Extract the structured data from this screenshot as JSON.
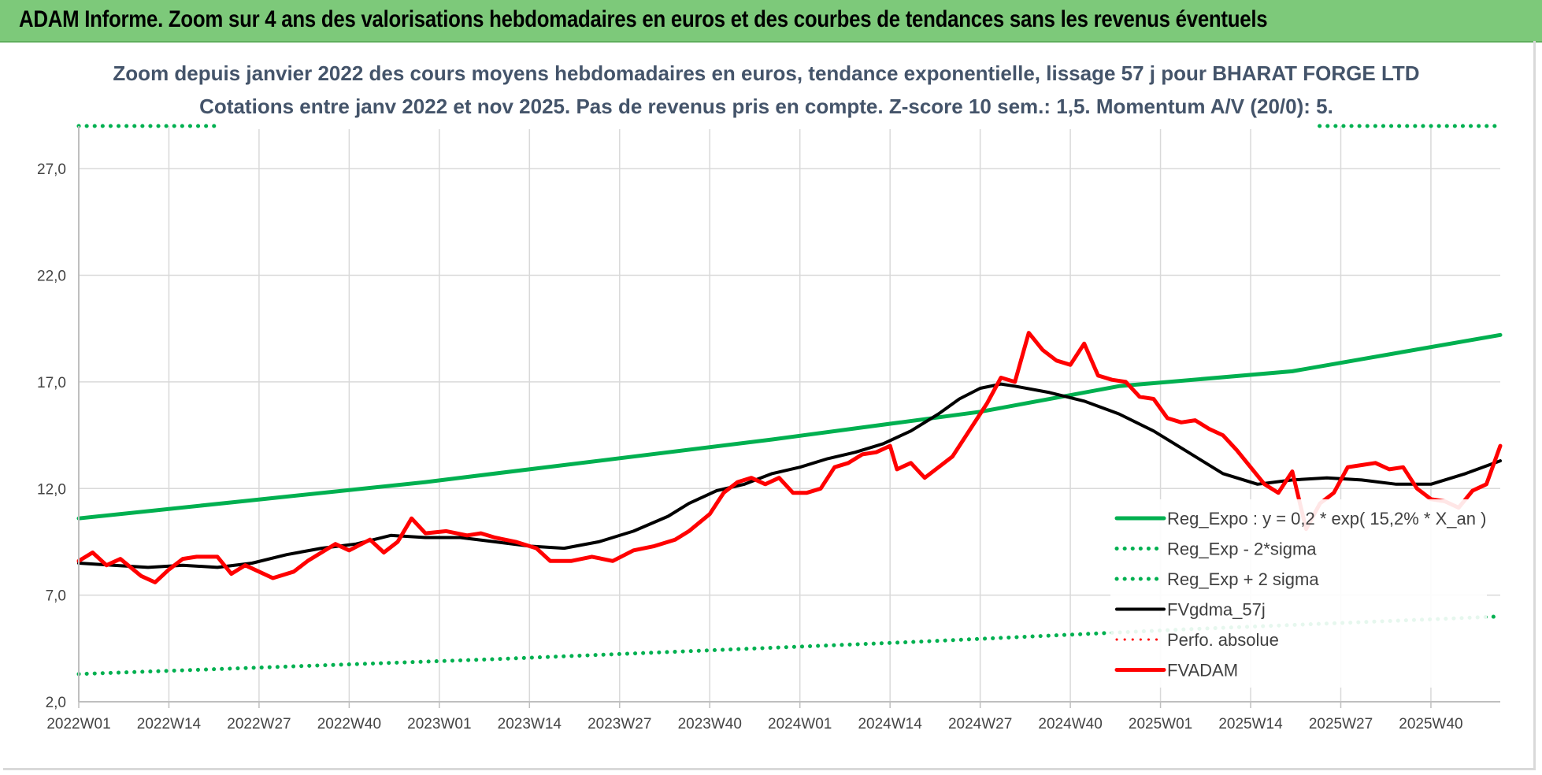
{
  "banner": {
    "title": "ADAM Informe. Zoom sur 4 ans des valorisations hebdomadaires en euros et des courbes de tendances sans les revenus éventuels"
  },
  "colors": {
    "banner_bg": "#7dc97a",
    "green": "#00b050",
    "red": "#ff0000",
    "black": "#000000",
    "grid": "#d9d9d9",
    "title": "#44546a"
  },
  "chart_data": {
    "type": "line",
    "title_lines": [
      "Zoom depuis janvier 2022 des cours moyens hebdomadaires en euros, tendance exponentielle, lissage 57 j pour BHARAT FORGE LTD",
      "Cotations entre janv 2022 et nov 2025. Pas de revenus pris en compte. Z-score 10 sem.: 1,5. Momentum A/V (20/0): 5."
    ],
    "x_tick_labels": [
      "2022W01",
      "2022W14",
      "2022W27",
      "2022W40",
      "2023W01",
      "2023W14",
      "2023W27",
      "2023W40",
      "2024W01",
      "2024W14",
      "2024W27",
      "2024W40",
      "2025W01",
      "2025W14",
      "2025W27",
      "2025W40"
    ],
    "x_tick_index": [
      0,
      13,
      26,
      39,
      52,
      65,
      78,
      91,
      104,
      117,
      130,
      143,
      156,
      169,
      182,
      195
    ],
    "n_weeks": 206,
    "ylim": [
      2.0,
      29.0
    ],
    "y_ticks": [
      2.0,
      7.0,
      12.0,
      17.0,
      22.0,
      27.0
    ],
    "y_tick_labels": [
      "2,0",
      "7,0",
      "12,0",
      "17,0",
      "22,0",
      "27,0"
    ],
    "series": [
      {
        "name": "Reg_Expo : y = 0,2 * exp( 15,2% *  X_an )",
        "color": "#00b050",
        "style": "solid",
        "width": 5,
        "points": [
          [
            0,
            10.6
          ],
          [
            50,
            12.3
          ],
          [
            100,
            14.3
          ],
          [
            130,
            15.6
          ],
          [
            150,
            16.8
          ],
          [
            175,
            17.5
          ],
          [
            205,
            19.2
          ]
        ]
      },
      {
        "name": "Reg_Exp - 2*sigma",
        "color": "#00b050",
        "style": "dotted",
        "width": 5,
        "points": [
          [
            0,
            3.3
          ],
          [
            60,
            4.0
          ],
          [
            120,
            4.8
          ],
          [
            160,
            5.4
          ],
          [
            205,
            6.0
          ]
        ]
      },
      {
        "name": "Reg_Exp + 2 sigma",
        "color": "#00b050",
        "style": "dotted",
        "width": 5,
        "points": [
          [
            0,
            29.0
          ],
          [
            205,
            29.0
          ]
        ]
      },
      {
        "name": "FVgdma_57j",
        "color": "#000000",
        "style": "solid",
        "width": 4,
        "points": [
          [
            0,
            8.5
          ],
          [
            5,
            8.4
          ],
          [
            10,
            8.3
          ],
          [
            15,
            8.4
          ],
          [
            20,
            8.3
          ],
          [
            25,
            8.5
          ],
          [
            30,
            8.9
          ],
          [
            35,
            9.2
          ],
          [
            40,
            9.4
          ],
          [
            45,
            9.8
          ],
          [
            50,
            9.7
          ],
          [
            55,
            9.7
          ],
          [
            60,
            9.5
          ],
          [
            65,
            9.3
          ],
          [
            70,
            9.2
          ],
          [
            75,
            9.5
          ],
          [
            80,
            10.0
          ],
          [
            85,
            10.7
          ],
          [
            88,
            11.3
          ],
          [
            92,
            11.9
          ],
          [
            96,
            12.2
          ],
          [
            100,
            12.7
          ],
          [
            104,
            13.0
          ],
          [
            108,
            13.4
          ],
          [
            112,
            13.7
          ],
          [
            116,
            14.1
          ],
          [
            120,
            14.7
          ],
          [
            124,
            15.5
          ],
          [
            127,
            16.2
          ],
          [
            130,
            16.7
          ],
          [
            133,
            16.9
          ],
          [
            135,
            16.8
          ],
          [
            140,
            16.5
          ],
          [
            145,
            16.1
          ],
          [
            150,
            15.5
          ],
          [
            155,
            14.7
          ],
          [
            160,
            13.7
          ],
          [
            165,
            12.7
          ],
          [
            170,
            12.2
          ],
          [
            175,
            12.4
          ],
          [
            180,
            12.5
          ],
          [
            185,
            12.4
          ],
          [
            190,
            12.2
          ],
          [
            195,
            12.2
          ],
          [
            200,
            12.7
          ],
          [
            205,
            13.3
          ]
        ]
      },
      {
        "name": "Perfo. absolue",
        "color": "#ff0000",
        "style": "dotted",
        "width": 3,
        "points": []
      },
      {
        "name": "FVADAM",
        "color": "#ff0000",
        "style": "solid",
        "width": 5,
        "points": [
          [
            0,
            8.6
          ],
          [
            2,
            9.0
          ],
          [
            4,
            8.4
          ],
          [
            6,
            8.7
          ],
          [
            9,
            7.9
          ],
          [
            11,
            7.6
          ],
          [
            13,
            8.2
          ],
          [
            15,
            8.7
          ],
          [
            17,
            8.8
          ],
          [
            20,
            8.8
          ],
          [
            22,
            8.0
          ],
          [
            24,
            8.4
          ],
          [
            26,
            8.1
          ],
          [
            28,
            7.8
          ],
          [
            31,
            8.1
          ],
          [
            33,
            8.6
          ],
          [
            35,
            9.0
          ],
          [
            37,
            9.4
          ],
          [
            39,
            9.1
          ],
          [
            42,
            9.6
          ],
          [
            44,
            9.0
          ],
          [
            46,
            9.5
          ],
          [
            48,
            10.6
          ],
          [
            50,
            9.9
          ],
          [
            53,
            10.0
          ],
          [
            56,
            9.8
          ],
          [
            58,
            9.9
          ],
          [
            60,
            9.7
          ],
          [
            63,
            9.5
          ],
          [
            66,
            9.2
          ],
          [
            68,
            8.6
          ],
          [
            71,
            8.6
          ],
          [
            74,
            8.8
          ],
          [
            77,
            8.6
          ],
          [
            80,
            9.1
          ],
          [
            83,
            9.3
          ],
          [
            86,
            9.6
          ],
          [
            88,
            10.0
          ],
          [
            91,
            10.8
          ],
          [
            93,
            11.8
          ],
          [
            95,
            12.3
          ],
          [
            97,
            12.5
          ],
          [
            99,
            12.2
          ],
          [
            101,
            12.5
          ],
          [
            103,
            11.8
          ],
          [
            105,
            11.8
          ],
          [
            107,
            12.0
          ],
          [
            109,
            13.0
          ],
          [
            111,
            13.2
          ],
          [
            113,
            13.6
          ],
          [
            115,
            13.7
          ],
          [
            117,
            14.0
          ],
          [
            118,
            12.9
          ],
          [
            120,
            13.2
          ],
          [
            122,
            12.5
          ],
          [
            124,
            13.0
          ],
          [
            126,
            13.5
          ],
          [
            128,
            14.5
          ],
          [
            131,
            16.0
          ],
          [
            133,
            17.2
          ],
          [
            135,
            17.0
          ],
          [
            137,
            19.3
          ],
          [
            139,
            18.5
          ],
          [
            141,
            18.0
          ],
          [
            143,
            17.8
          ],
          [
            145,
            18.8
          ],
          [
            147,
            17.3
          ],
          [
            149,
            17.1
          ],
          [
            151,
            17.0
          ],
          [
            153,
            16.3
          ],
          [
            155,
            16.2
          ],
          [
            157,
            15.3
          ],
          [
            159,
            15.1
          ],
          [
            161,
            15.2
          ],
          [
            163,
            14.8
          ],
          [
            165,
            14.5
          ],
          [
            167,
            13.8
          ],
          [
            169,
            13.0
          ],
          [
            171,
            12.2
          ],
          [
            173,
            11.8
          ],
          [
            175,
            12.8
          ],
          [
            177,
            10.1
          ],
          [
            179,
            11.3
          ],
          [
            181,
            11.8
          ],
          [
            183,
            13.0
          ],
          [
            185,
            13.1
          ],
          [
            187,
            13.2
          ],
          [
            189,
            12.9
          ],
          [
            191,
            13.0
          ],
          [
            193,
            12.0
          ],
          [
            195,
            11.5
          ],
          [
            197,
            11.4
          ],
          [
            199,
            11.1
          ],
          [
            201,
            11.9
          ],
          [
            203,
            12.2
          ],
          [
            205,
            14.0
          ]
        ]
      }
    ]
  },
  "legend": {
    "entries": [
      "Reg_Expo : y = 0,2 * exp( 15,2% *  X_an )",
      "Reg_Exp - 2*sigma",
      "Reg_Exp + 2 sigma",
      "FVgdma_57j",
      "Perfo. absolue",
      "FVADAM"
    ]
  }
}
